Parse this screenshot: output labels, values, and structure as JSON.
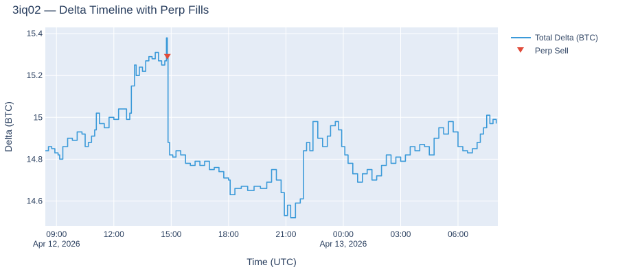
{
  "chart_data": {
    "type": "line",
    "title": "3iq02 — Delta Timeline with Perp Fills",
    "xlabel": "Time (UTC)",
    "ylabel": "Delta (BTC)",
    "xlim": [
      "2026-04-12 08:25",
      "2026-04-13 08:05"
    ],
    "ylim": [
      14.48,
      15.43
    ],
    "grid": true,
    "legend_position": "top-right",
    "colors": {
      "plot_bg": "#e5ecf6",
      "line": "#3b9ad9",
      "marker": "#e04b3a",
      "text": "#2a3f5f"
    },
    "x_ticks": [
      {
        "t": "2026-04-12 09:00",
        "label": "09:00",
        "sublabel": "Apr 12, 2026"
      },
      {
        "t": "2026-04-12 12:00",
        "label": "12:00",
        "sublabel": ""
      },
      {
        "t": "2026-04-12 15:00",
        "label": "15:00",
        "sublabel": ""
      },
      {
        "t": "2026-04-12 18:00",
        "label": "18:00",
        "sublabel": ""
      },
      {
        "t": "2026-04-12 21:00",
        "label": "21:00",
        "sublabel": ""
      },
      {
        "t": "2026-04-13 00:00",
        "label": "00:00",
        "sublabel": "Apr 13, 2026"
      },
      {
        "t": "2026-04-13 03:00",
        "label": "03:00",
        "sublabel": ""
      },
      {
        "t": "2026-04-13 06:00",
        "label": "06:00",
        "sublabel": ""
      }
    ],
    "y_ticks": [
      {
        "v": 14.6,
        "label": "14.6"
      },
      {
        "v": 14.8,
        "label": "14.8"
      },
      {
        "v": 15.0,
        "label": "15"
      },
      {
        "v": 15.2,
        "label": "15.2"
      },
      {
        "v": 15.4,
        "label": "15.4"
      }
    ],
    "series": [
      {
        "name": "Total Delta (BTC)",
        "mode": "line",
        "points": [
          [
            "2026-04-12 08:25",
            14.84
          ],
          [
            "2026-04-12 08:35",
            14.86
          ],
          [
            "2026-04-12 08:45",
            14.85
          ],
          [
            "2026-04-12 08:55",
            14.83
          ],
          [
            "2026-04-12 09:05",
            14.82
          ],
          [
            "2026-04-12 09:10",
            14.8
          ],
          [
            "2026-04-12 09:20",
            14.86
          ],
          [
            "2026-04-12 09:35",
            14.9
          ],
          [
            "2026-04-12 09:50",
            14.89
          ],
          [
            "2026-04-12 10:05",
            14.93
          ],
          [
            "2026-04-12 10:20",
            14.92
          ],
          [
            "2026-04-12 10:30",
            14.86
          ],
          [
            "2026-04-12 10:40",
            14.88
          ],
          [
            "2026-04-12 10:50",
            14.91
          ],
          [
            "2026-04-12 11:00",
            14.94
          ],
          [
            "2026-04-12 11:05",
            15.02
          ],
          [
            "2026-04-12 11:15",
            14.97
          ],
          [
            "2026-04-12 11:30",
            14.95
          ],
          [
            "2026-04-12 11:45",
            15.0
          ],
          [
            "2026-04-12 12:00",
            14.99
          ],
          [
            "2026-04-12 12:15",
            15.04
          ],
          [
            "2026-04-12 12:30",
            15.04
          ],
          [
            "2026-04-12 12:40",
            14.99
          ],
          [
            "2026-04-12 12:50",
            15.02
          ],
          [
            "2026-04-12 12:55",
            15.15
          ],
          [
            "2026-04-12 13:05",
            15.25
          ],
          [
            "2026-04-12 13:10",
            15.2
          ],
          [
            "2026-04-12 13:20",
            15.24
          ],
          [
            "2026-04-12 13:30",
            15.22
          ],
          [
            "2026-04-12 13:40",
            15.27
          ],
          [
            "2026-04-12 13:50",
            15.29
          ],
          [
            "2026-04-12 14:00",
            15.28
          ],
          [
            "2026-04-12 14:10",
            15.31
          ],
          [
            "2026-04-12 14:20",
            15.27
          ],
          [
            "2026-04-12 14:30",
            15.25
          ],
          [
            "2026-04-12 14:40",
            15.27
          ],
          [
            "2026-04-12 14:45",
            15.38
          ],
          [
            "2026-04-12 14:48",
            15.29
          ],
          [
            "2026-04-12 14:50",
            14.88
          ],
          [
            "2026-04-12 14:55",
            14.82
          ],
          [
            "2026-04-12 15:05",
            14.81
          ],
          [
            "2026-04-12 15:15",
            14.84
          ],
          [
            "2026-04-12 15:30",
            14.82
          ],
          [
            "2026-04-12 15:45",
            14.78
          ],
          [
            "2026-04-12 16:00",
            14.77
          ],
          [
            "2026-04-12 16:15",
            14.79
          ],
          [
            "2026-04-12 16:30",
            14.77
          ],
          [
            "2026-04-12 16:45",
            14.79
          ],
          [
            "2026-04-12 17:00",
            14.75
          ],
          [
            "2026-04-12 17:15",
            14.76
          ],
          [
            "2026-04-12 17:30",
            14.74
          ],
          [
            "2026-04-12 17:45",
            14.71
          ],
          [
            "2026-04-12 18:00",
            14.7
          ],
          [
            "2026-04-12 18:05",
            14.63
          ],
          [
            "2026-04-12 18:20",
            14.66
          ],
          [
            "2026-04-12 18:40",
            14.67
          ],
          [
            "2026-04-12 19:00",
            14.65
          ],
          [
            "2026-04-12 19:20",
            14.67
          ],
          [
            "2026-04-12 19:40",
            14.66
          ],
          [
            "2026-04-12 20:00",
            14.69
          ],
          [
            "2026-04-12 20:15",
            14.75
          ],
          [
            "2026-04-12 20:30",
            14.7
          ],
          [
            "2026-04-12 20:45",
            14.64
          ],
          [
            "2026-04-12 20:55",
            14.53
          ],
          [
            "2026-04-12 21:05",
            14.58
          ],
          [
            "2026-04-12 21:15",
            14.52
          ],
          [
            "2026-04-12 21:30",
            14.59
          ],
          [
            "2026-04-12 21:45",
            14.61
          ],
          [
            "2026-04-12 21:55",
            14.84
          ],
          [
            "2026-04-12 22:05",
            14.88
          ],
          [
            "2026-04-12 22:15",
            14.84
          ],
          [
            "2026-04-12 22:25",
            14.98
          ],
          [
            "2026-04-12 22:40",
            14.9
          ],
          [
            "2026-04-12 22:55",
            14.86
          ],
          [
            "2026-04-12 23:10",
            14.91
          ],
          [
            "2026-04-12 23:20",
            14.96
          ],
          [
            "2026-04-12 23:35",
            14.98
          ],
          [
            "2026-04-12 23:45",
            14.94
          ],
          [
            "2026-04-12 23:55",
            14.86
          ],
          [
            "2026-04-13 00:05",
            14.82
          ],
          [
            "2026-04-13 00:15",
            14.78
          ],
          [
            "2026-04-13 00:30",
            14.73
          ],
          [
            "2026-04-13 00:45",
            14.69
          ],
          [
            "2026-04-13 01:00",
            14.73
          ],
          [
            "2026-04-13 01:15",
            14.75
          ],
          [
            "2026-04-13 01:30",
            14.7
          ],
          [
            "2026-04-13 01:45",
            14.72
          ],
          [
            "2026-04-13 02:00",
            14.77
          ],
          [
            "2026-04-13 02:15",
            14.82
          ],
          [
            "2026-04-13 02:30",
            14.78
          ],
          [
            "2026-04-13 02:45",
            14.81
          ],
          [
            "2026-04-13 03:00",
            14.79
          ],
          [
            "2026-04-13 03:15",
            14.82
          ],
          [
            "2026-04-13 03:30",
            14.86
          ],
          [
            "2026-04-13 03:45",
            14.84
          ],
          [
            "2026-04-13 04:00",
            14.87
          ],
          [
            "2026-04-13 04:15",
            14.86
          ],
          [
            "2026-04-13 04:30",
            14.82
          ],
          [
            "2026-04-13 04:45",
            14.9
          ],
          [
            "2026-04-13 05:00",
            14.95
          ],
          [
            "2026-04-13 05:15",
            14.92
          ],
          [
            "2026-04-13 05:30",
            14.98
          ],
          [
            "2026-04-13 05:45",
            14.93
          ],
          [
            "2026-04-13 06:00",
            14.86
          ],
          [
            "2026-04-13 06:15",
            14.84
          ],
          [
            "2026-04-13 06:30",
            14.83
          ],
          [
            "2026-04-13 06:45",
            14.85
          ],
          [
            "2026-04-13 07:00",
            14.88
          ],
          [
            "2026-04-13 07:10",
            14.92
          ],
          [
            "2026-04-13 07:20",
            14.95
          ],
          [
            "2026-04-13 07:30",
            15.01
          ],
          [
            "2026-04-13 07:40",
            14.97
          ],
          [
            "2026-04-13 07:50",
            14.99
          ],
          [
            "2026-04-13 08:00",
            14.97
          ]
        ]
      },
      {
        "name": "Perp Sell",
        "mode": "markers",
        "marker": "triangle-down",
        "points": [
          [
            "2026-04-12 14:48",
            15.29
          ]
        ]
      }
    ]
  }
}
